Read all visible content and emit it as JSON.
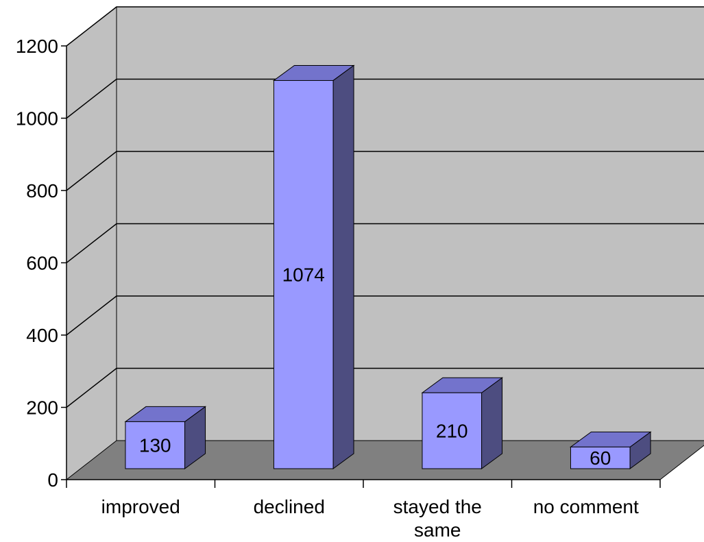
{
  "chart_data": {
    "type": "bar",
    "style": "3d-column",
    "categories": [
      "improved",
      "declined",
      "stayed the same",
      "no comment"
    ],
    "category_label_lines": [
      [
        "improved"
      ],
      [
        "declined"
      ],
      [
        "stayed the",
        "same"
      ],
      [
        "no comment"
      ]
    ],
    "values": [
      130,
      1074,
      210,
      60
    ],
    "data_labels": [
      "130",
      "1074",
      "210",
      "60"
    ],
    "ylim": [
      0,
      1200
    ],
    "yticks": [
      0,
      200,
      400,
      600,
      800,
      1000,
      1200
    ],
    "ytick_labels": [
      "0",
      "200",
      "400",
      "600",
      "800",
      "1000",
      "1200"
    ],
    "title": "",
    "xlabel": "",
    "ylabel": "",
    "grid": true,
    "legend": "none",
    "colors": {
      "bar_front": "#9999ff",
      "bar_top": "#7373cc",
      "bar_side": "#4d4d80",
      "back_wall": "#c0c0c0",
      "side_wall": "#c0c0c0",
      "floor": "#808080",
      "gridline": "#000000"
    }
  }
}
